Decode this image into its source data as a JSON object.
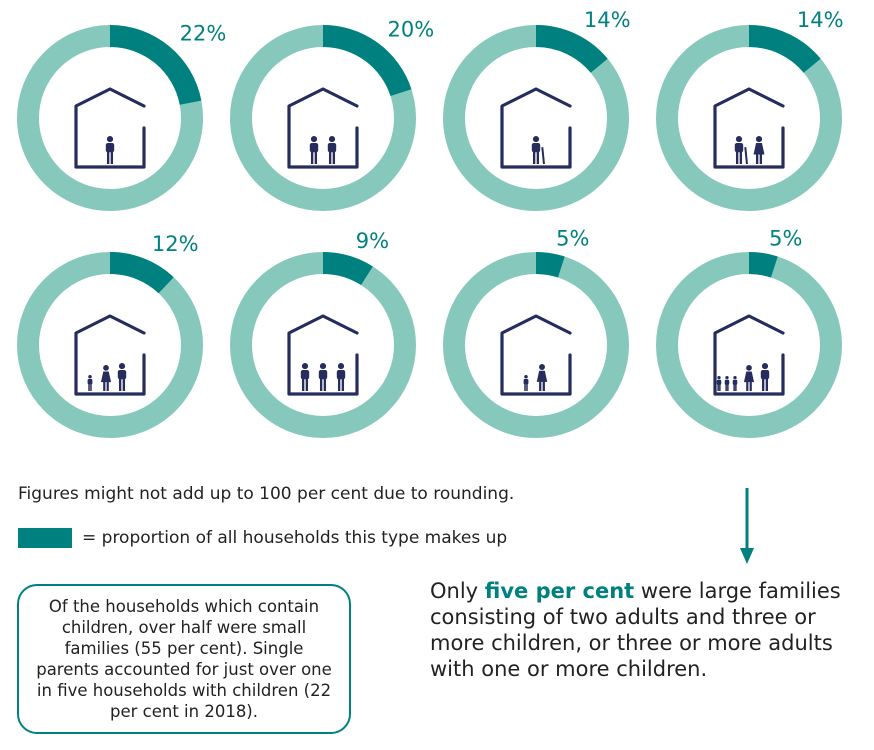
{
  "colors": {
    "ring": "#86c8bb",
    "highlight": "#00817f",
    "house": "#262c5c"
  },
  "chart_data": {
    "type": "donut",
    "unit": "%",
    "series": [
      {
        "label": "22%",
        "value": 22,
        "icon": "single-adult-house-icon"
      },
      {
        "label": "20%",
        "value": 20,
        "icon": "two-adults-house-icon"
      },
      {
        "label": "14%",
        "value": 14,
        "icon": "single-pensioner-house-icon"
      },
      {
        "label": "14%",
        "value": 14,
        "icon": "two-pensioners-house-icon"
      },
      {
        "label": "12%",
        "value": 12,
        "icon": "two-adults-child-house-icon"
      },
      {
        "label": "9%",
        "value": 9,
        "icon": "three-adults-house-icon"
      },
      {
        "label": "5%",
        "value": 5,
        "icon": "single-parent-house-icon"
      },
      {
        "label": "5%",
        "value": 5,
        "icon": "large-family-house-icon"
      }
    ]
  },
  "note": "Figures might not add up to 100 per cent due to rounding.",
  "legend": {
    "text": "= proportion of all households this type makes up"
  },
  "callout": {
    "text": "Of the households which contain children, over half were small families (55 per cent). Single parents accounted for just over one in five households with children (22 per cent in 2018)."
  },
  "summary": {
    "highlight": "five per cent",
    "before": "Only ",
    "after": " were large families consisting of two adults and three or more children, or three or more adults with one or more children."
  }
}
